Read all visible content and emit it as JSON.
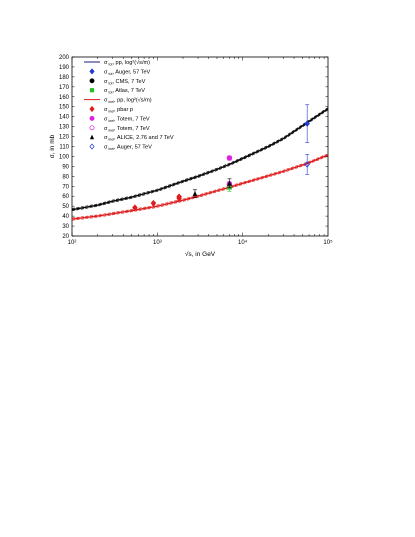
{
  "chart_data": {
    "type": "line",
    "xlabel": "√s, in GeV",
    "ylabel": "σ, in mb",
    "xscale": "log",
    "xlim": [
      100,
      100000
    ],
    "ylim": [
      20,
      200
    ],
    "x_tick_labels": [
      "10²",
      "10³",
      "10⁴",
      "10⁵"
    ],
    "x_tick_values": [
      100,
      1000,
      10000,
      100000
    ],
    "y_ticks": [
      20,
      30,
      40,
      50,
      60,
      70,
      80,
      90,
      100,
      110,
      120,
      130,
      140,
      150,
      160,
      170,
      180,
      190,
      200
    ],
    "legend_position": "top-left",
    "legend": [
      {
        "main": "σ",
        "sub": "tot",
        "rest": ", pp, log²(√s/m)",
        "sup": "",
        "marker": "line",
        "color": "#1a1a80"
      },
      {
        "main": "σ",
        "sub": "tot",
        "rest": ", Auger, 57 TeV",
        "marker": "diamond",
        "color": "#1f3bd6"
      },
      {
        "main": "σ",
        "sub": "tot",
        "rest": ", CMS,  7 TeV",
        "marker": "circle",
        "color": "#000000"
      },
      {
        "main": "σ",
        "sub": "tot",
        "rest": ", Atlas,  7 TeV",
        "marker": "square",
        "color": "#26c026"
      },
      {
        "main": "σ",
        "sub": "inel",
        "rest": ", pp, log²(√s/m)",
        "marker": "line",
        "color": "#e01b1b"
      },
      {
        "main": "σ",
        "sub": "inel",
        "rest": ", pbar p",
        "marker": "diamond",
        "color": "#e01b1b"
      },
      {
        "main": "σ",
        "sub": "inel",
        "rest": ", Totem, 7 TeV",
        "marker": "circle",
        "color": "#e020e0"
      },
      {
        "main": "σ",
        "sub": "inel",
        "rest": ", Totem, 7 TeV",
        "marker": "circle-open",
        "color": "#e020e0"
      },
      {
        "main": "σ",
        "sub": "inel",
        "rest": ", ALICE, 2.76 and 7 TeV",
        "marker": "triangle",
        "color": "#000000"
      },
      {
        "main": "σ",
        "sub": "inel",
        "rest": ", Auger, 57 TeV",
        "marker": "diamond-open",
        "color": "#1f3bd6"
      }
    ],
    "series": [
      {
        "name": "σtot, pp, log²(√s/m)",
        "kind": "curve",
        "color": "#000000",
        "x": [
          100,
          200,
          300,
          500,
          1000,
          2000,
          3000,
          5000,
          7000,
          10000,
          20000,
          30000,
          57000,
          100000
        ],
        "y": [
          46.5,
          51,
          55,
          59,
          66,
          75,
          80,
          87,
          92,
          98,
          110,
          118,
          134,
          148
        ]
      },
      {
        "name": "σinel, pp, log²(√s/m)",
        "kind": "curve",
        "color": "#e01b1b",
        "x": [
          100,
          200,
          300,
          500,
          1000,
          2000,
          3000,
          5000,
          7000,
          10000,
          20000,
          30000,
          57000,
          100000
        ],
        "y": [
          37,
          40,
          42.5,
          45.5,
          50,
          56,
          60,
          65.5,
          69,
          73,
          80.5,
          85,
          93,
          101.5
        ]
      },
      {
        "name": "σtot, Auger, 57 TeV",
        "kind": "points",
        "marker": "diamond",
        "color": "#1f3bd6",
        "points": [
          {
            "x": 57000,
            "y": 133,
            "err": 19
          }
        ]
      },
      {
        "name": "σtot, CMS, 7 TeV",
        "kind": "points",
        "marker": "circle",
        "color": "#000000",
        "points": [
          {
            "x": 7000,
            "y": 71.5,
            "err": 3
          }
        ]
      },
      {
        "name": "σtot, Atlas, 7 TeV",
        "kind": "points",
        "marker": "square",
        "color": "#26c026",
        "points": [
          {
            "x": 7000,
            "y": 69,
            "err": 4
          }
        ]
      },
      {
        "name": "σinel, pbar p",
        "kind": "points",
        "marker": "diamond",
        "color": "#e01b1b",
        "points": [
          {
            "x": 546,
            "y": 48.5,
            "err": 1
          },
          {
            "x": 900,
            "y": 53,
            "err": 1
          },
          {
            "x": 1800,
            "y": 58,
            "err": 2
          },
          {
            "x": 1800,
            "y": 59.5,
            "err": 1
          }
        ]
      },
      {
        "name": "σinel, Totem, 7 TeV",
        "kind": "points",
        "marker": "circle",
        "color": "#e020e0",
        "points": [
          {
            "x": 7000,
            "y": 98.5,
            "err": 2
          },
          {
            "x": 7000,
            "y": 72.5,
            "err": 2
          }
        ]
      },
      {
        "name": "σinel, Totem, 7 TeV (open)",
        "kind": "points",
        "marker": "circle-open",
        "color": "#e020e0",
        "points": [
          {
            "x": 7000,
            "y": 98.3,
            "err": 2
          }
        ]
      },
      {
        "name": "σinel, ALICE, 2.76 and 7 TeV",
        "kind": "points",
        "marker": "triangle",
        "color": "#000000",
        "points": [
          {
            "x": 2760,
            "y": 62.5,
            "err": 4
          },
          {
            "x": 7000,
            "y": 73,
            "err": 4.5
          }
        ]
      },
      {
        "name": "σinel, Auger, 57 TeV",
        "kind": "points",
        "marker": "diamond-open",
        "color": "#1f3bd6",
        "points": [
          {
            "x": 57000,
            "y": 92,
            "err": 10
          }
        ]
      }
    ]
  }
}
